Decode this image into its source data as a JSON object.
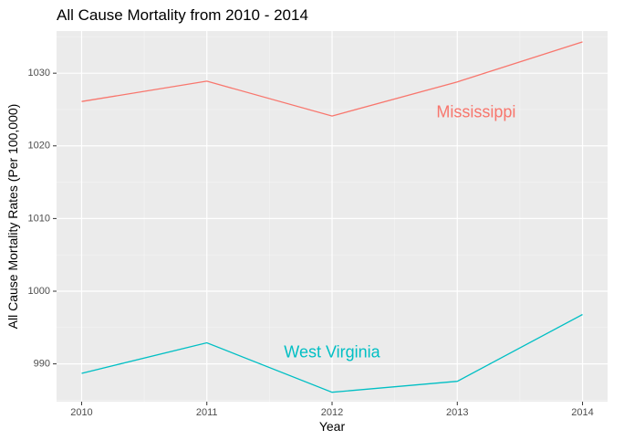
{
  "chart_data": {
    "type": "line",
    "title": "All Cause Mortality from 2010 - 2014",
    "xlabel": "Year",
    "ylabel": "All Cause Mortality Rates (Per 100,000)",
    "x": [
      2010,
      2011,
      2012,
      2013,
      2014
    ],
    "x_tick_labels": [
      "2010",
      "2011",
      "2012",
      "2013",
      "2014"
    ],
    "y_ticks": [
      990,
      1000,
      1010,
      1020,
      1030
    ],
    "y_tick_labels": [
      "990",
      "1000",
      "1010",
      "1020",
      "1030"
    ],
    "xlim": [
      2009.8,
      2014.2
    ],
    "ylim": [
      984.8,
      1035.8
    ],
    "grid": true,
    "legend": "none (direct labels)",
    "series": [
      {
        "name": "Mississippi",
        "values": [
          1026.1,
          1028.9,
          1024.1,
          1028.8,
          1034.3
        ],
        "color": "#F8766D",
        "label_at": {
          "x": 2013.15,
          "y": 1024.5
        }
      },
      {
        "name": "West Virginia",
        "values": [
          988.7,
          992.9,
          986.1,
          987.6,
          996.8
        ],
        "color": "#00BFC4",
        "label_at": {
          "x": 2012.0,
          "y": 991.5
        }
      }
    ]
  }
}
